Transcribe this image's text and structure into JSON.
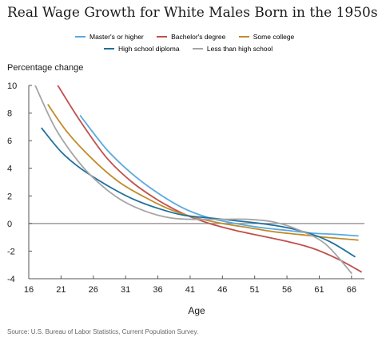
{
  "colors": {
    "masters": "#5aa9e0",
    "bachelors": "#c0504d",
    "some_college": "#c08c2a",
    "high_school": "#1f6f9c",
    "less_hs": "#a5a5a8",
    "axis": "#555555",
    "zero_line": "#888888"
  },
  "chart_data": {
    "type": "line",
    "title": "Real Wage Growth for White Males Born in the 1950s",
    "ylabel": "Percentage change",
    "xlabel": "Age",
    "xlim": [
      16,
      68
    ],
    "ylim": [
      -4,
      10
    ],
    "xticks": [
      16,
      21,
      26,
      31,
      36,
      41,
      46,
      51,
      56,
      61,
      66
    ],
    "yticks": [
      10,
      8,
      6,
      4,
      2,
      0,
      -2,
      -4
    ],
    "legend_position": "top",
    "grid": false,
    "series": [
      {
        "name": "Master's or higher",
        "color_key": "masters",
        "x": [
          24,
          28,
          32,
          36,
          40,
          44,
          48,
          52,
          56,
          60,
          64,
          67
        ],
        "y": [
          7.8,
          5.4,
          3.6,
          2.2,
          1.1,
          0.4,
          0.0,
          -0.3,
          -0.5,
          -0.7,
          -0.8,
          -0.9
        ]
      },
      {
        "name": "Bachelor's degree",
        "color_key": "bachelors",
        "x": [
          20.5,
          24,
          28,
          32,
          36,
          40,
          44,
          48,
          52,
          56,
          60,
          64,
          67.5
        ],
        "y": [
          10.0,
          7.4,
          4.8,
          3.0,
          1.7,
          0.7,
          0.0,
          -0.5,
          -0.9,
          -1.3,
          -1.8,
          -2.6,
          -3.5
        ]
      },
      {
        "name": "Some college",
        "color_key": "some_college",
        "x": [
          19,
          22,
          26,
          30,
          34,
          38,
          42,
          46,
          50,
          54,
          58,
          62,
          67
        ],
        "y": [
          8.6,
          6.6,
          4.6,
          3.0,
          1.9,
          1.0,
          0.4,
          0.0,
          -0.3,
          -0.6,
          -0.8,
          -1.0,
          -1.2
        ]
      },
      {
        "name": "High school diploma",
        "color_key": "high_school",
        "x": [
          18,
          21,
          24,
          28,
          32,
          36,
          40,
          44,
          48,
          52,
          56,
          60,
          63,
          66.5
        ],
        "y": [
          6.9,
          5.2,
          4.0,
          2.8,
          1.8,
          1.1,
          0.6,
          0.4,
          0.2,
          0.0,
          -0.3,
          -0.8,
          -1.4,
          -2.4
        ]
      },
      {
        "name": "Less than high school",
        "color_key": "less_hs",
        "x": [
          17,
          20,
          23,
          26,
          30,
          34,
          38,
          42,
          46,
          50,
          54,
          58,
          62,
          66
        ],
        "y": [
          10.0,
          7.0,
          4.9,
          3.3,
          1.8,
          0.9,
          0.4,
          0.3,
          0.3,
          0.3,
          0.1,
          -0.5,
          -1.5,
          -3.6
        ]
      }
    ]
  },
  "source": "Source: U.S. Bureau of Labor Statistics, Current Population Survey."
}
